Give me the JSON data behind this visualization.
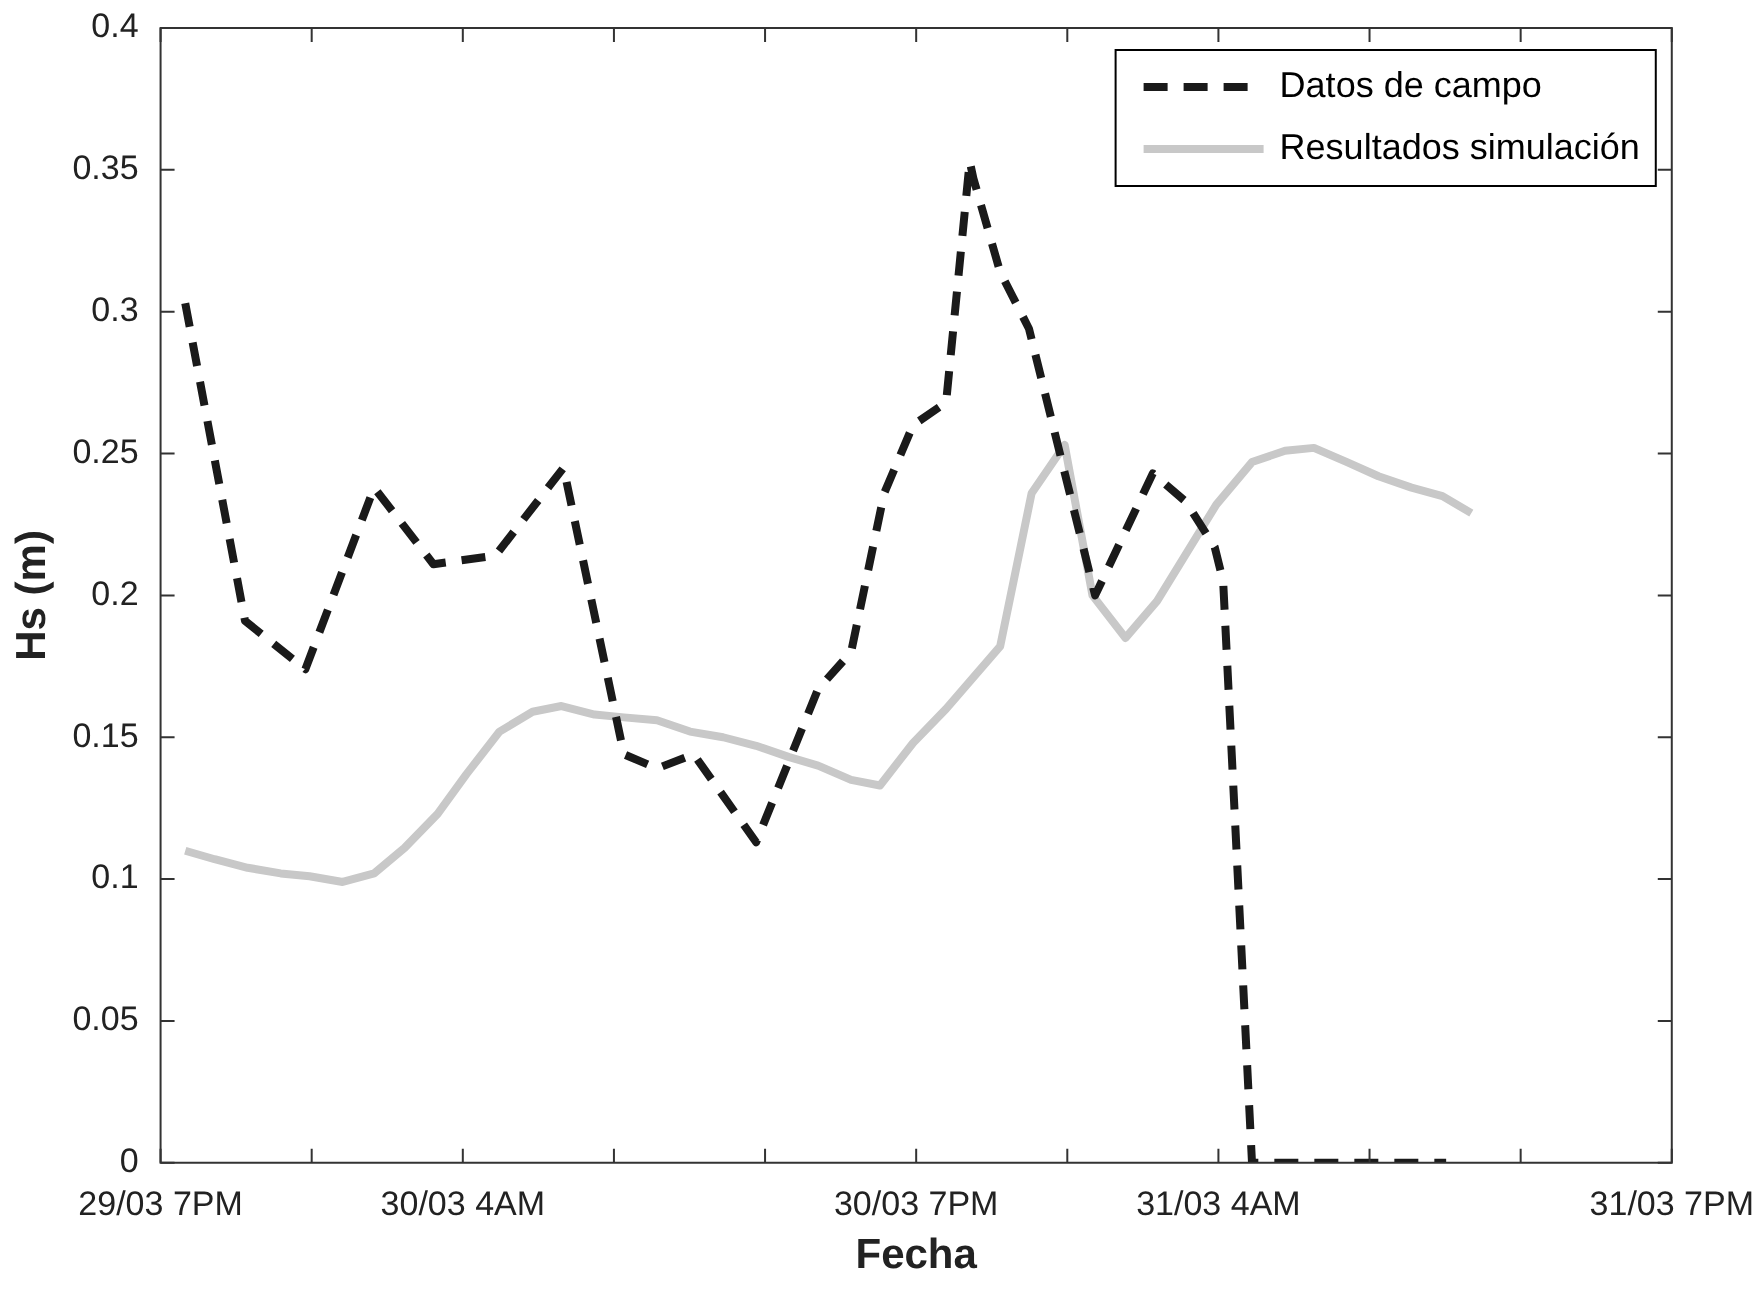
{
  "chart_data": {
    "type": "line",
    "xlabel": "Fecha",
    "ylabel": "Hs (m)",
    "xlim": [
      "--03-29T19:00",
      "--03-31T19:00"
    ],
    "ylim": [
      0,
      0.4
    ],
    "xticks": [
      {
        "value": "--03-29T19:00",
        "label": "29/03 7PM"
      },
      {
        "value": "--03-29T23:48",
        "label": null
      },
      {
        "value": "--03-30T04:36",
        "label": "30/03 4AM"
      },
      {
        "value": "--03-30T09:24",
        "label": null
      },
      {
        "value": "--03-30T14:12",
        "label": null
      },
      {
        "value": "--03-30T19:00",
        "label": "30/03 7PM"
      },
      {
        "value": "--03-30T23:48",
        "label": null
      },
      {
        "value": "--03-31T04:36",
        "label": "31/03 4AM"
      },
      {
        "value": "--03-31T09:24",
        "label": null
      },
      {
        "value": "--03-31T14:12",
        "label": null
      },
      {
        "value": "--03-31T19:00",
        "label": "31/03 7PM"
      }
    ],
    "yticks": [
      0,
      0.05,
      0.1,
      0.15,
      0.2,
      0.25,
      0.3,
      0.35,
      0.4
    ],
    "grid": false,
    "legend": "top right",
    "marker": "none",
    "series": [
      {
        "name": "Datos de campo",
        "color": "#1a1a1a",
        "line_style": "dashed",
        "x": [
          "--03-29T19:47",
          "--03-29T21:41",
          "--03-29T23:36",
          "--03-30T01:47",
          "--03-30T03:40",
          "--03-30T05:38",
          "--03-30T07:48",
          "--03-30T09:43",
          "--03-30T10:46",
          "--03-30T11:56",
          "--03-30T13:55",
          "--03-30T15:53",
          "--03-30T16:56",
          "--03-30T17:59",
          "--03-30T18:54",
          "--03-30T19:57",
          "--03-30T20:42",
          "--03-30T20:49",
          "--03-30T21:40",
          "--03-30T22:35",
          "--03-31T00:41",
          "--03-31T02:31",
          "--03-31T03:34",
          "--03-31T04:29",
          "--03-31T04:45",
          "--03-31T05:40",
          "--03-31T11:50"
        ],
        "values": [
          0.303,
          0.191,
          0.174,
          0.238,
          0.211,
          0.214,
          0.245,
          0.144,
          0.139,
          0.144,
          0.113,
          0.167,
          0.18,
          0.236,
          0.26,
          0.268,
          0.353,
          0.347,
          0.314,
          0.294,
          0.2,
          0.243,
          0.233,
          0.217,
          0.205,
          0,
          0
        ]
      },
      {
        "name": "Resultados simulación",
        "color": "#c8c8c8",
        "line_style": "solid",
        "x": [
          "--03-29T19:47",
          "--03-29T20:43",
          "--03-29T21:46",
          "--03-29T22:49",
          "--03-29T23:44",
          "--03-30T00:47",
          "--03-30T01:47",
          "--03-30T02:45",
          "--03-30T03:48",
          "--03-30T04:43",
          "--03-30T05:46",
          "--03-30T06:49",
          "--03-30T07:44",
          "--03-30T08:47",
          "--03-30T09:43",
          "--03-30T10:46",
          "--03-30T11:49",
          "--03-30T12:52",
          "--03-30T13:55",
          "--03-30T14:58",
          "--03-30T15:53",
          "--03-30T16:56",
          "--03-30T17:51",
          "--03-30T18:54",
          "--03-30T19:57",
          "--03-30T21:40",
          "--03-30T22:40",
          "--03-30T23:43",
          "--03-31T00:36",
          "--03-31T01:39",
          "--03-31T02:39",
          "--03-31T04:32",
          "--03-31T05:40",
          "--03-31T06:43",
          "--03-31T07:38",
          "--03-31T08:41",
          "--03-31T09:41",
          "--03-31T10:44",
          "--03-31T11:43",
          "--03-31T12:38"
        ],
        "values": [
          0.11,
          0.107,
          0.104,
          0.102,
          0.101,
          0.099,
          0.102,
          0.111,
          0.123,
          0.137,
          0.152,
          0.159,
          0.161,
          0.158,
          0.157,
          0.156,
          0.152,
          0.15,
          0.147,
          0.143,
          0.14,
          0.135,
          0.133,
          0.148,
          0.16,
          0.182,
          0.236,
          0.253,
          0.2,
          0.185,
          0.198,
          0.232,
          0.247,
          0.251,
          0.252,
          0.247,
          0.242,
          0.238,
          0.235,
          0.229
        ]
      }
    ]
  }
}
